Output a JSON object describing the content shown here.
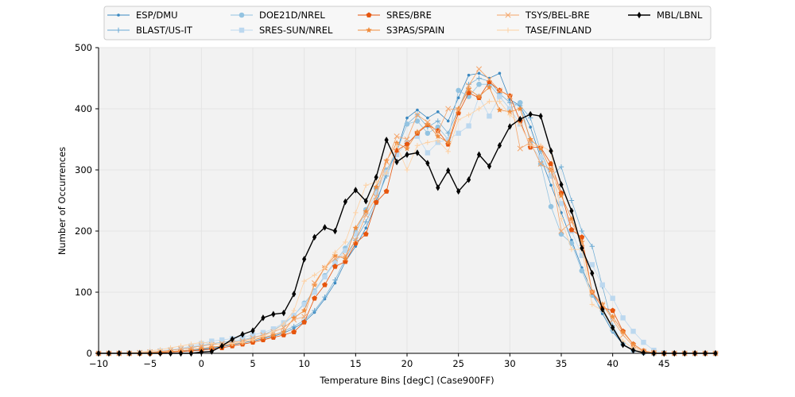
{
  "chart_data": {
    "type": "line",
    "title": "",
    "xlabel": "Temperature Bins [degC] (Case900FF)",
    "ylabel": "Number of Occurrences",
    "xlim": [
      -10,
      50
    ],
    "ylim": [
      0,
      500
    ],
    "x_ticks": [
      "−10",
      "−5",
      "0",
      "5",
      "10",
      "15",
      "20",
      "25",
      "30",
      "35",
      "40",
      "45"
    ],
    "y_ticks": [
      "0",
      "100",
      "200",
      "300",
      "400",
      "500"
    ],
    "grid": true,
    "legend_position": "top",
    "x": [
      -10,
      -9,
      -8,
      -7,
      -6,
      -5,
      -4,
      -3,
      -2,
      -1,
      0,
      1,
      2,
      3,
      4,
      5,
      6,
      7,
      8,
      9,
      10,
      11,
      12,
      13,
      14,
      15,
      16,
      17,
      18,
      19,
      20,
      21,
      22,
      23,
      24,
      25,
      26,
      27,
      28,
      29,
      30,
      31,
      32,
      33,
      34,
      35,
      36,
      37,
      38,
      39,
      40,
      41,
      42,
      43,
      44,
      45,
      46,
      47,
      48,
      49,
      50
    ],
    "series": [
      {
        "name": "ESP/DMU",
        "color": "#3a88c0",
        "marker": "dot",
        "width": 0.8,
        "values": [
          0,
          0,
          0,
          0,
          0,
          0,
          1,
          2,
          3,
          4,
          6,
          8,
          11,
          14,
          17,
          20,
          24,
          28,
          33,
          41,
          51,
          67,
          89,
          115,
          150,
          175,
          205,
          245,
          295,
          330,
          385,
          398,
          385,
          395,
          380,
          418,
          455,
          458,
          450,
          458,
          415,
          405,
          370,
          320,
          275,
          230,
          185,
          140,
          100,
          65,
          35,
          15,
          5,
          1,
          0,
          0,
          0,
          0,
          0,
          0,
          0
        ]
      },
      {
        "name": "BLAST/US-IT",
        "color": "#6aaad4",
        "marker": "plus",
        "width": 0.7,
        "values": [
          0,
          0,
          0,
          0,
          0,
          0,
          1,
          2,
          3,
          5,
          7,
          9,
          12,
          15,
          18,
          22,
          26,
          30,
          36,
          44,
          54,
          70,
          92,
          120,
          155,
          185,
          215,
          250,
          290,
          330,
          375,
          390,
          370,
          380,
          360,
          400,
          440,
          450,
          445,
          425,
          410,
          405,
          385,
          330,
          290,
          305,
          250,
          200,
          175,
          110,
          45,
          15,
          5,
          1,
          0,
          0,
          0,
          0,
          0,
          0,
          0
        ]
      },
      {
        "name": "DOE21D/NREL",
        "color": "#93c3e1",
        "marker": "circle",
        "width": 0.8,
        "values": [
          0,
          0,
          0,
          0,
          1,
          2,
          3,
          5,
          7,
          10,
          13,
          16,
          18,
          20,
          22,
          26,
          30,
          38,
          48,
          62,
          82,
          102,
          127,
          150,
          172,
          198,
          235,
          270,
          300,
          330,
          375,
          380,
          360,
          370,
          350,
          430,
          420,
          440,
          440,
          420,
          400,
          410,
          345,
          310,
          240,
          195,
          180,
          135,
          95,
          70,
          38,
          15,
          5,
          1,
          0,
          0,
          0,
          0,
          0,
          0,
          0
        ]
      },
      {
        "name": "SRES-SUN/NREL",
        "color": "#bcd8ef",
        "marker": "square",
        "width": 0.8,
        "values": [
          0,
          0,
          0,
          0,
          1,
          2,
          4,
          6,
          8,
          12,
          16,
          20,
          22,
          24,
          26,
          30,
          34,
          40,
          50,
          62,
          80,
          100,
          125,
          148,
          168,
          195,
          230,
          262,
          296,
          325,
          345,
          355,
          328,
          345,
          350,
          360,
          372,
          420,
          388,
          420,
          400,
          375,
          340,
          320,
          290,
          245,
          200,
          160,
          145,
          112,
          90,
          58,
          36,
          18,
          5,
          1,
          0,
          0,
          0,
          0,
          0
        ]
      },
      {
        "name": "SRES/BRE",
        "color": "#e6550d",
        "marker": "pentagon",
        "width": 0.8,
        "values": [
          0,
          0,
          0,
          0,
          0,
          0,
          1,
          2,
          3,
          4,
          5,
          7,
          9,
          12,
          15,
          18,
          22,
          26,
          30,
          35,
          51,
          90,
          112,
          142,
          150,
          180,
          195,
          247,
          265,
          332,
          342,
          360,
          374,
          364,
          342,
          393,
          426,
          418,
          444,
          430,
          421,
          380,
          337,
          337,
          310,
          262,
          202,
          190,
          100,
          75,
          70,
          36,
          15,
          4,
          1,
          0,
          0,
          0,
          0,
          0,
          0
        ]
      },
      {
        "name": "S3PAS/SPAIN",
        "color": "#f08c3c",
        "marker": "star",
        "width": 0.8,
        "values": [
          0,
          0,
          0,
          0,
          0,
          1,
          2,
          3,
          4,
          6,
          8,
          10,
          12,
          15,
          18,
          22,
          26,
          30,
          35,
          58,
          70,
          112,
          140,
          160,
          155,
          205,
          232,
          272,
          315,
          344,
          335,
          362,
          375,
          355,
          345,
          400,
          432,
          420,
          435,
          398,
          395,
          400,
          350,
          335,
          300,
          258,
          220,
          182,
          100,
          80,
          60,
          35,
          15,
          4,
          1,
          0,
          0,
          0,
          0,
          0,
          0
        ]
      },
      {
        "name": "TSYS/BEL-BRE",
        "color": "#f4a56a",
        "marker": "x",
        "width": 0.8,
        "values": [
          0,
          0,
          0,
          0,
          1,
          2,
          3,
          5,
          7,
          9,
          12,
          14,
          16,
          18,
          20,
          25,
          30,
          35,
          42,
          55,
          60,
          115,
          140,
          155,
          160,
          185,
          226,
          256,
          313,
          355,
          350,
          390,
          378,
          362,
          400,
          398,
          438,
          465,
          448,
          430,
          420,
          335,
          345,
          310,
          300,
          200,
          215,
          180,
          100,
          80,
          55,
          30,
          12,
          3,
          1,
          0,
          0,
          0,
          0,
          0,
          0
        ]
      },
      {
        "name": "TASE/FINLAND",
        "color": "#fdd0a2",
        "marker": "plus",
        "width": 0.8,
        "values": [
          0,
          0,
          0,
          1,
          2,
          4,
          6,
          9,
          12,
          15,
          18,
          16,
          15,
          16,
          18,
          22,
          28,
          36,
          48,
          70,
          118,
          128,
          140,
          165,
          182,
          230,
          275,
          280,
          295,
          340,
          300,
          340,
          345,
          348,
          330,
          382,
          390,
          400,
          412,
          412,
          390,
          375,
          340,
          340,
          330,
          220,
          170,
          170,
          80,
          70,
          40,
          20,
          8,
          2,
          0,
          0,
          0,
          0,
          0,
          0,
          0
        ]
      },
      {
        "name": "MBL/LBNL",
        "color": "#000000",
        "marker": "diamond",
        "width": 1.4,
        "values": [
          0,
          0,
          0,
          0,
          0,
          0,
          0,
          0,
          0,
          0,
          2,
          3,
          12,
          23,
          31,
          37,
          58,
          64,
          66,
          97,
          154,
          190,
          206,
          200,
          248,
          267,
          249,
          288,
          349,
          313,
          325,
          328,
          311,
          271,
          299,
          265,
          284,
          325,
          306,
          340,
          371,
          383,
          391,
          388,
          331,
          276,
          233,
          172,
          131,
          72,
          42,
          14,
          5,
          1,
          0,
          0,
          0,
          0,
          0,
          0,
          0
        ]
      }
    ]
  }
}
